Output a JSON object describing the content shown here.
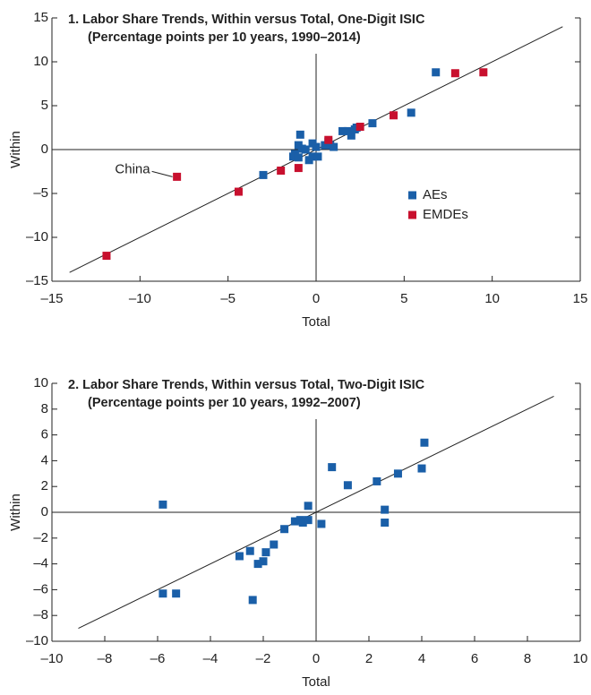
{
  "chart_data": [
    {
      "type": "scatter",
      "title": "1. Labor Share Trends, Within versus Total, One-Digit ISIC",
      "subtitle": "(Percentage points per 10 years, 1990–2014)",
      "x_label": "Total",
      "y_label": "Within",
      "xlim": [
        -15,
        15
      ],
      "ylim": [
        -15,
        15
      ],
      "xticks": [
        {
          "value": -15,
          "label": "–15"
        },
        {
          "value": -10,
          "label": "–10"
        },
        {
          "value": -5,
          "label": "–5"
        },
        0,
        5,
        10,
        15
      ],
      "yticks": [
        {
          "value": -15,
          "label": "–15"
        },
        {
          "value": -10,
          "label": "–10"
        },
        {
          "value": -5,
          "label": "–5"
        },
        0,
        5,
        10,
        15
      ],
      "reference_line": {
        "x": [
          -14,
          14
        ],
        "y": [
          -14,
          14
        ]
      },
      "series": [
        {
          "name": "AEs",
          "color": "#1a5fa8",
          "x": [
            6.8,
            5.4,
            3.2,
            2.3,
            2.0,
            1.5,
            1.8,
            2.2,
            0.8,
            1.0,
            0.5,
            0.7,
            -0.2,
            0.0,
            -0.2,
            -0.4,
            0.1,
            -0.9,
            -1.0,
            -0.8,
            -0.6,
            -1.2,
            -1.3,
            -1.0,
            -3.0
          ],
          "values": [
            8.8,
            4.2,
            3.0,
            2.5,
            1.6,
            2.1,
            2.1,
            2.3,
            0.5,
            0.3,
            0.5,
            0.9,
            0.7,
            0.3,
            -0.8,
            -1.2,
            -0.8,
            1.7,
            0.5,
            0.1,
            0.0,
            -0.5,
            -0.8,
            -0.9,
            -2.9
          ]
        },
        {
          "name": "EMDEs",
          "color": "#c8102e",
          "x": [
            9.5,
            7.9,
            4.4,
            2.5,
            0.7,
            -1.0,
            -2.0,
            -4.4,
            -7.9,
            -11.9
          ],
          "values": [
            8.8,
            8.7,
            3.9,
            2.6,
            1.1,
            -2.1,
            -2.4,
            -4.8,
            -3.1,
            -12.1
          ]
        }
      ],
      "annotations": [
        {
          "text": "China",
          "x": -7.9,
          "y": -3.1
        }
      ]
    },
    {
      "type": "scatter",
      "title": "2. Labor Share Trends, Within versus Total, Two-Digit ISIC",
      "subtitle": "(Percentage points per 10 years, 1992–2007)",
      "x_label": "Total",
      "y_label": "Within",
      "xlim": [
        -10,
        10
      ],
      "ylim": [
        -10,
        10
      ],
      "xticks": [
        {
          "value": -10,
          "label": "–10"
        },
        {
          "value": -8,
          "label": "–8"
        },
        {
          "value": -6,
          "label": "–6"
        },
        {
          "value": -4,
          "label": "–4"
        },
        {
          "value": -2,
          "label": "–2"
        },
        0,
        2,
        4,
        6,
        8,
        10
      ],
      "yticks": [
        {
          "value": -10,
          "label": "–10"
        },
        {
          "value": -8,
          "label": "–8"
        },
        {
          "value": -6,
          "label": "–6"
        },
        {
          "value": -4,
          "label": "–4"
        },
        {
          "value": -2,
          "label": "–2"
        },
        0,
        2,
        4,
        6,
        8,
        10
      ],
      "reference_line": {
        "x": [
          -9,
          9
        ],
        "y": [
          -9,
          9
        ]
      },
      "series": [
        {
          "color": "#1a5fa8",
          "x": [
            -5.8,
            -5.8,
            -5.3,
            -2.9,
            -2.5,
            -2.4,
            -2.2,
            -2.0,
            -1.9,
            -1.6,
            -1.2,
            -0.8,
            -0.5,
            -0.6,
            -0.3,
            -0.3,
            0.2,
            0.6,
            1.2,
            2.3,
            2.6,
            2.6,
            3.1,
            4.0,
            4.1
          ],
          "values": [
            0.6,
            -6.3,
            -6.3,
            -3.4,
            -3.0,
            -6.8,
            -4.0,
            -3.8,
            -3.1,
            -2.5,
            -1.3,
            -0.7,
            -0.8,
            -0.6,
            -0.6,
            0.5,
            -0.9,
            3.5,
            2.1,
            2.4,
            0.2,
            -0.8,
            3.0,
            3.4,
            5.4
          ]
        }
      ]
    }
  ]
}
